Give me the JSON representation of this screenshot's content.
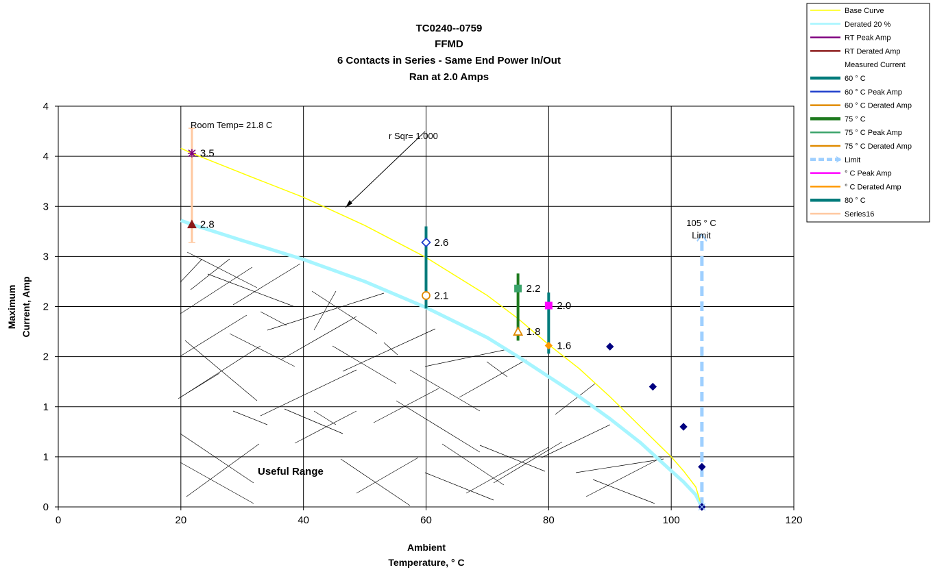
{
  "chart_data": {
    "type": "line",
    "title_lines": [
      "TC0240--0759",
      "FFMD",
      "6 Contacts in Series - Same End Power In/Out",
      "Ran at 2.0 Amps"
    ],
    "xlabel_lines": [
      "Ambient",
      "Temperature,  ° C"
    ],
    "ylabel_lines": [
      "Maximum",
      "Current, Amp"
    ],
    "xlim": [
      0,
      120
    ],
    "ylim": [
      0,
      4
    ],
    "x_ticks": [
      0,
      20,
      40,
      60,
      80,
      100,
      120
    ],
    "x_tick_labels": [
      "0",
      "20",
      "40",
      "60",
      "80",
      "100",
      "120"
    ],
    "y_ticks": [
      0,
      0.5,
      1,
      1.5,
      2,
      2.5,
      3,
      3.5,
      4
    ],
    "y_tick_labels": [
      "0",
      "1",
      "1",
      "2",
      "2",
      "3",
      "3",
      "4",
      "4"
    ],
    "grid": true,
    "legend_position": "top-right",
    "annotations": {
      "room_temp": "Room Temp= 21.8 C",
      "r_sqr": "r Sqr= 1.000",
      "limit_line1": "105  ° C",
      "limit_line2": "Limit",
      "useful_range": "Useful Range"
    },
    "series": [
      {
        "name": "Base Curve",
        "color": "#ffff00",
        "x": [
          20,
          21.8,
          30,
          40,
          50,
          60,
          70,
          75,
          80,
          85,
          90,
          95,
          100,
          102,
          104,
          105
        ],
        "y": [
          3.58,
          3.53,
          3.33,
          3.09,
          2.81,
          2.49,
          2.11,
          1.88,
          1.62,
          1.38,
          1.1,
          0.8,
          0.5,
          0.36,
          0.2,
          0.0
        ]
      },
      {
        "name": "Derated 20 %",
        "color": "#a6f5ff",
        "x": [
          20,
          21.8,
          30,
          40,
          50,
          60,
          70,
          75,
          80,
          85,
          90,
          95,
          100,
          102,
          104,
          105
        ],
        "y": [
          2.86,
          2.82,
          2.66,
          2.47,
          2.25,
          1.99,
          1.69,
          1.5,
          1.3,
          1.1,
          0.88,
          0.64,
          0.36,
          0.25,
          0.12,
          0.0
        ]
      },
      {
        "name": "RT Peak Amp",
        "color": "#800080",
        "marker": "star",
        "x": [
          21.8
        ],
        "y": [
          3.53
        ],
        "label": "3.5"
      },
      {
        "name": "RT Derated Amp",
        "color": "#8b1a1a",
        "marker": "triangle",
        "x": [
          21.8
        ],
        "y": [
          2.82
        ],
        "label": "2.8"
      },
      {
        "name": "Measured Current",
        "color": "#000080",
        "marker": "diamond",
        "x": [
          90,
          97,
          102,
          105,
          105
        ],
        "y": [
          1.6,
          1.2,
          0.8,
          0.4,
          0.0
        ]
      },
      {
        "name": "60 ° C",
        "color": "#007b7b",
        "x": [
          60,
          60
        ],
        "y": [
          1.98,
          2.8
        ]
      },
      {
        "name": "60  ° C Peak Amp",
        "color": "#1f3fcc",
        "marker": "diamond-open",
        "x": [
          60
        ],
        "y": [
          2.64
        ],
        "label": "2.6"
      },
      {
        "name": "60  ° C Derated Amp",
        "color": "#e08a00",
        "marker": "circle-open",
        "x": [
          60
        ],
        "y": [
          2.11
        ],
        "label": "2.1"
      },
      {
        "name": "75  ° C",
        "color": "#1e7a1e",
        "x": [
          75,
          75
        ],
        "y": [
          1.66,
          2.33
        ]
      },
      {
        "name": "75  ° C Peak Amp",
        "color": "#3aa36a",
        "marker": "square",
        "x": [
          75
        ],
        "y": [
          2.18
        ],
        "label": "2.2"
      },
      {
        "name": "75  ° C Derated Amp",
        "color": "#e08a00",
        "marker": "triangle-open",
        "x": [
          75
        ],
        "y": [
          1.75
        ],
        "label": "1.8"
      },
      {
        "name": "Limit",
        "color": "#9ecfff",
        "marker": "arrow",
        "x": [
          105,
          105
        ],
        "y": [
          0.0,
          2.72
        ]
      },
      {
        "name": " ° C Peak Amp",
        "color": "#ff00ff",
        "marker": "square",
        "x": [
          80
        ],
        "y": [
          2.01
        ],
        "label": "2.0"
      },
      {
        "name": " ° C Derated Amp",
        "color": "#ff9900",
        "marker": "diamond",
        "x": [
          80
        ],
        "y": [
          1.61
        ],
        "label": "1.6"
      },
      {
        "name": "80  ° C",
        "color": "#007b7b",
        "x": [
          80,
          80
        ],
        "y": [
          1.53,
          2.14
        ]
      },
      {
        "name": "Series16",
        "color": "#ffc8a0",
        "x": [
          21.8,
          21.8
        ],
        "y": [
          2.64,
          3.78
        ]
      }
    ]
  }
}
